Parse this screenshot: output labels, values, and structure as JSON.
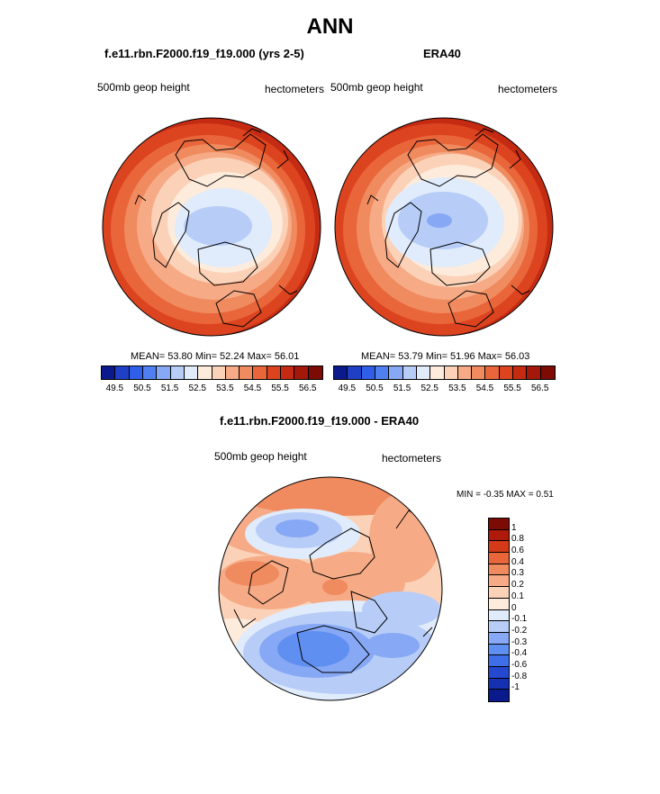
{
  "title": "ANN",
  "panels": [
    {
      "title": "f.e11.rbn.F2000.f19_f19.000 (yrs 2-5)",
      "left_label": "500mb geop height",
      "right_label": "hectometers",
      "stats": "MEAN=  53.80  Min=  52.24  Max=  56.01"
    },
    {
      "title": "ERA40",
      "left_label": "500mb geop height",
      "right_label": "hectometers",
      "stats": "MEAN=  53.79  Min=  51.96  Max=  56.03"
    }
  ],
  "diff_panel": {
    "title": "f.e11.rbn.F2000.f19_f19.000 - ERA40",
    "left_label": "500mb geop height",
    "right_label": "hectometers",
    "stats": "MIN =  -0.35 MAX =   0.51"
  },
  "colorbar_main": {
    "colors": [
      "#0a1a8c",
      "#1f3fc4",
      "#2f5fe8",
      "#4f7ff0",
      "#86a8f5",
      "#b7cdf8",
      "#e0ebfb",
      "#fdebdc",
      "#fbd2b8",
      "#f6ab86",
      "#f08a5f",
      "#e9653a",
      "#dc4420",
      "#c42b12",
      "#a4170b",
      "#7c0a05"
    ],
    "labels": [
      "49.5",
      "50.5",
      "51.5",
      "52.5",
      "53.5",
      "54.5",
      "55.5",
      "56.5"
    ]
  },
  "colorbar_diff": {
    "colors": [
      "#7c0a05",
      "#b01a0a",
      "#d43a18",
      "#e9653a",
      "#f08a5f",
      "#f6ab86",
      "#fbd2b8",
      "#fdebdc",
      "#e0ebfb",
      "#b7cdf8",
      "#86a8f5",
      "#5f8ff0",
      "#3f6fe8",
      "#2448d0",
      "#1530b0",
      "#0a1a8c"
    ],
    "labels": [
      "1",
      "0.8",
      "0.6",
      "0.4",
      "0.3",
      "0.2",
      "0.1",
      "0",
      "-0.1",
      "-0.2",
      "-0.3",
      "-0.4",
      "-0.6",
      "-0.8",
      "-1"
    ]
  },
  "chart_data": [
    {
      "type": "heatmap",
      "title": "f.e11.rbn.F2000.f19_f19.000 (yrs 2-5)",
      "variable": "500mb geop height",
      "units": "hectometers",
      "projection": "polar stereographic (Northern Hemisphere)",
      "mean": 53.8,
      "min": 52.24,
      "max": 56.01,
      "levels": [
        49.5,
        50.5,
        51.5,
        52.5,
        53.5,
        54.5,
        55.5,
        56.5
      ]
    },
    {
      "type": "heatmap",
      "title": "ERA40",
      "variable": "500mb geop height",
      "units": "hectometers",
      "projection": "polar stereographic (Northern Hemisphere)",
      "mean": 53.79,
      "min": 51.96,
      "max": 56.03,
      "levels": [
        49.5,
        50.5,
        51.5,
        52.5,
        53.5,
        54.5,
        55.5,
        56.5
      ]
    },
    {
      "type": "heatmap",
      "title": "f.e11.rbn.F2000.f19_f19.000 - ERA40",
      "variable": "500mb geop height",
      "units": "hectometers",
      "projection": "polar stereographic (Northern Hemisphere)",
      "min": -0.35,
      "max": 0.51,
      "levels": [
        1,
        0.8,
        0.6,
        0.4,
        0.3,
        0.2,
        0.1,
        0,
        -0.1,
        -0.2,
        -0.3,
        -0.4,
        -0.6,
        -0.8,
        -1
      ]
    }
  ]
}
